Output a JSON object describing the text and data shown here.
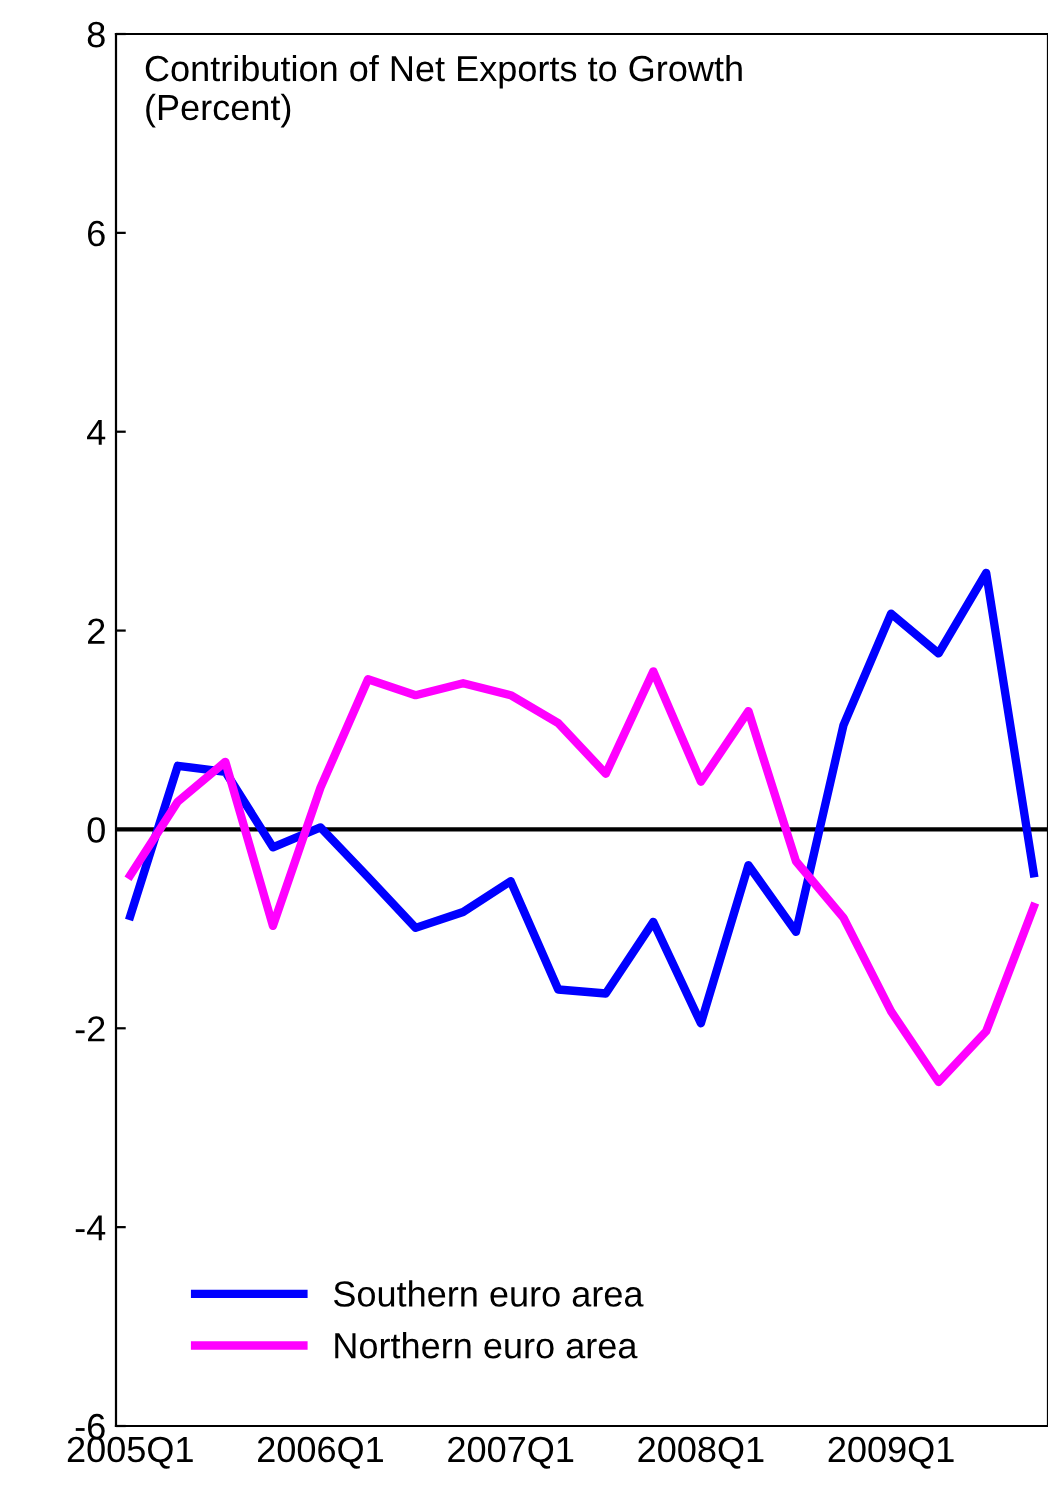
{
  "chart_data": {
    "type": "line",
    "title": "Contribution of Net Exports to Growth\n(Percent)",
    "categories": [
      "2005Q1",
      null,
      null,
      null,
      "2006Q1",
      null,
      null,
      null,
      "2007Q1",
      null,
      null,
      null,
      "2008Q1",
      null,
      null,
      null,
      "2009Q1",
      null,
      null,
      null
    ],
    "series": [
      {
        "name": "Southern euro area",
        "color": "#0000ff",
        "values": [
          -0.87,
          0.64,
          0.58,
          -0.18,
          0.02,
          -0.48,
          -0.99,
          -0.83,
          -0.52,
          -1.61,
          -1.65,
          -0.93,
          -1.95,
          -0.36,
          -1.03,
          1.05,
          2.17,
          1.77,
          2.58,
          -0.44
        ]
      },
      {
        "name": "Northern euro area",
        "color": "#ff00ff",
        "values": [
          -0.46,
          0.28,
          0.68,
          -0.97,
          0.42,
          1.51,
          1.35,
          1.47,
          1.35,
          1.07,
          0.56,
          1.59,
          0.48,
          1.19,
          -0.32,
          -0.89,
          -1.83,
          -2.54,
          -2.03,
          -0.78
        ]
      }
    ],
    "ylim": [
      -6,
      8
    ],
    "yticks": [
      {
        "value": -6,
        "label": "-6"
      },
      {
        "value": -4,
        "label": "-4"
      },
      {
        "value": -2,
        "label": "-2"
      },
      0,
      2,
      4,
      6,
      8
    ],
    "ref_lines": [
      {
        "axis": "y",
        "value": 0,
        "color": "#000000"
      }
    ],
    "legend": "bottom left",
    "grid": false,
    "marker": "none",
    "line_style": "solid"
  }
}
